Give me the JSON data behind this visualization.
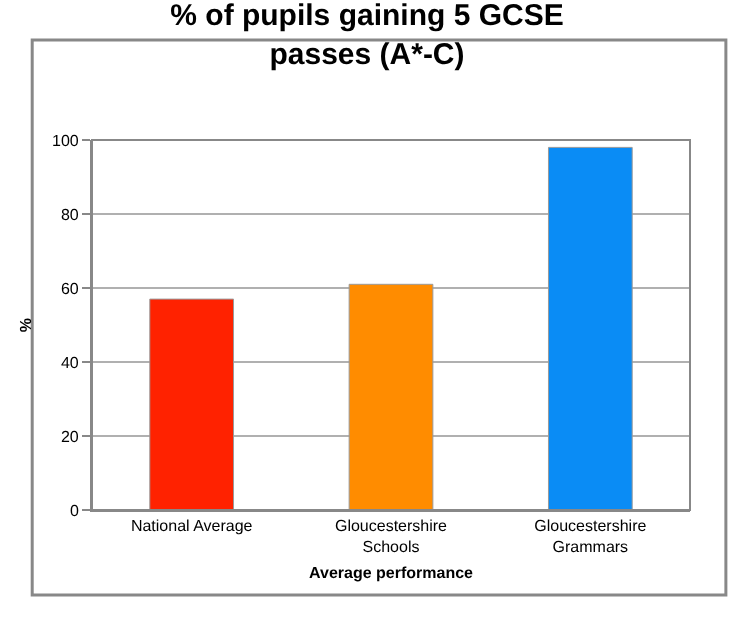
{
  "chart_data": {
    "type": "bar",
    "title": "% of pupils gaining 5 GCSE passes (A*-C)",
    "xlabel": "Average performance",
    "ylabel": "%",
    "categories": [
      "National Average",
      "Gloucestershire Schools",
      "Gloucestershire Grammars"
    ],
    "values": [
      57,
      61,
      98
    ],
    "colors": [
      "#ff2200",
      "#ff8c00",
      "#0a8cf5"
    ],
    "ylim": [
      0,
      100
    ],
    "yticks": [
      0,
      20,
      40,
      60,
      80,
      100
    ],
    "grid": "y"
  }
}
